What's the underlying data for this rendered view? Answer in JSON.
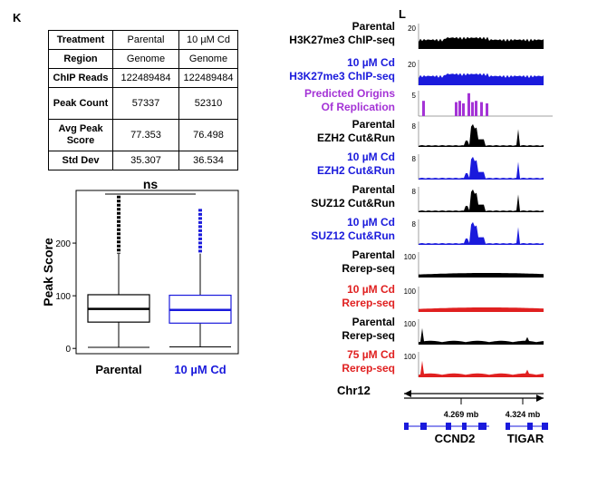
{
  "panel_k_label": "K",
  "panel_l_label": "L",
  "table": {
    "rows": [
      {
        "label": "Treatment",
        "v1": "Parental",
        "v2": "10 µM Cd"
      },
      {
        "label": "Region",
        "v1": "Genome",
        "v2": "Genome"
      },
      {
        "label": "ChIP Reads",
        "v1": "122489484",
        "v2": "122489484"
      },
      {
        "label": "Peak Count",
        "v1": "57337",
        "v2": "52310"
      },
      {
        "label": "Avg Peak Score",
        "v1": "77.353",
        "v2": "76.498"
      },
      {
        "label": "Std Dev",
        "v1": "35.307",
        "v2": "36.534"
      }
    ]
  },
  "chart_data": [
    {
      "type": "boxplot",
      "ylabel": "Peak Score",
      "yticks": [
        0,
        100,
        200
      ],
      "ylim": [
        -10,
        300
      ],
      "categories": [
        "Parental",
        "10 µM Cd"
      ],
      "category_colors": [
        "#000000",
        "#1a1adc"
      ],
      "boxes": [
        {
          "name": "Parental",
          "q1": 50,
          "median": 75,
          "q3": 102,
          "whisker_low": 2,
          "whisker_high": 180,
          "outlier_max": 290
        },
        {
          "name": "10 µM Cd",
          "q1": 48,
          "median": 73,
          "q3": 101,
          "whisker_low": 3,
          "whisker_high": 180,
          "outlier_max": 265
        }
      ],
      "significance": "ns"
    },
    {
      "type": "area",
      "chromosome": "Chr12",
      "coordinate_labels": [
        "4.269 mb",
        "4.324 mb"
      ],
      "genes": [
        "CCND2",
        "TIGAR"
      ],
      "tracks": [
        {
          "line1": "Parental",
          "line2": "H3K27me3 ChIP-seq",
          "color": "#000000",
          "scale": "20",
          "profile": "broad"
        },
        {
          "line1": "10 µM Cd",
          "line2": "H3K27me3 ChIP-seq",
          "color": "#1a1adc",
          "scale": "20",
          "profile": "broad"
        },
        {
          "line1": "Predicted Origins",
          "line2": "Of Replication",
          "color": "#a433d6",
          "scale": "5",
          "profile": "origins"
        },
        {
          "line1": "Parental",
          "line2": "EZH2 Cut&Run",
          "color": "#000000",
          "scale": "8",
          "profile": "peaks"
        },
        {
          "line1": "10 µM Cd",
          "line2": "EZH2 Cut&Run",
          "color": "#1a1adc",
          "scale": "8",
          "profile": "peaks"
        },
        {
          "line1": "Parental",
          "line2": "SUZ12 Cut&Run",
          "color": "#000000",
          "scale": "8",
          "profile": "peaks"
        },
        {
          "line1": "10 µM Cd",
          "line2": "SUZ12 Cut&Run",
          "color": "#1a1adc",
          "scale": "8",
          "profile": "peaks"
        },
        {
          "line1": "Parental",
          "line2": "Rerep-seq",
          "color": "#000000",
          "scale": "100",
          "profile": "flat"
        },
        {
          "line1": "10 µM Cd",
          "line2": "Rerep-seq",
          "color": "#e02020",
          "scale": "100",
          "profile": "flat"
        },
        {
          "line1": "Parental",
          "line2": "Rerep-seq",
          "color": "#000000",
          "scale": "100",
          "profile": "flatspike"
        },
        {
          "line1": "75 µM Cd",
          "line2": "Rerep-seq",
          "color": "#e02020",
          "scale": "100",
          "profile": "flatspike"
        }
      ]
    }
  ]
}
